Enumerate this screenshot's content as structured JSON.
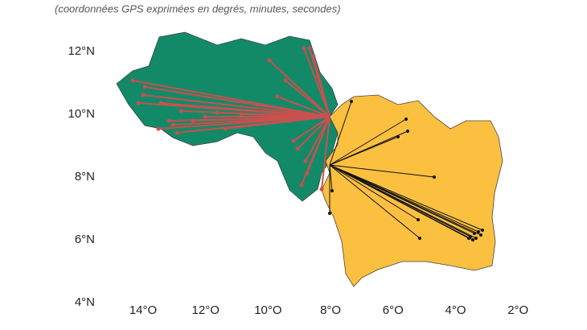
{
  "subtitle": "(coordonnées GPS exprimées en degrés, minutes, secondes)",
  "axes": {
    "latitude_labels": [
      "12°N",
      "10°N",
      "8°N",
      "6°N",
      "4°N"
    ],
    "longitude_labels": [
      "14°O",
      "12°O",
      "10°O",
      "8°O",
      "6°O",
      "4°O",
      "2°O"
    ]
  }
}
